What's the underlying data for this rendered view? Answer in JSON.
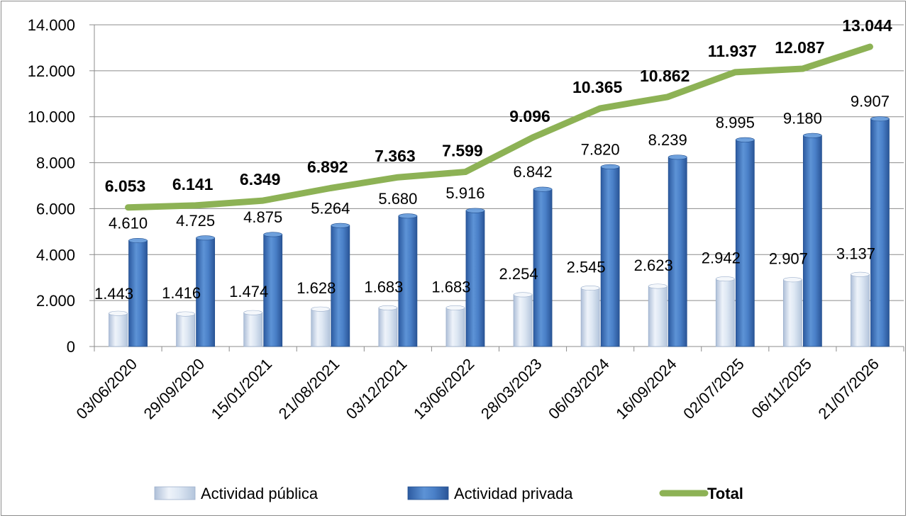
{
  "chart_data": {
    "type": "bar",
    "categories": [
      "03/06/2020",
      "29/09/2020",
      "15/01/2021",
      "21/08/2021",
      "03/12/2021",
      "13/06/2022",
      "28/03/2023",
      "06/03/2024",
      "16/09/2024",
      "02/07/2025",
      "06/11/2025",
      "21/07/2026"
    ],
    "series": [
      {
        "name": "Actividad pública",
        "kind": "bar",
        "values": [
          1443,
          1416,
          1474,
          1628,
          1683,
          1683,
          2254,
          2545,
          2623,
          2942,
          2907,
          3137
        ],
        "labels": [
          "1.443",
          "1.416",
          "1.474",
          "1.628",
          "1.683",
          "1.683",
          "2.254",
          "2.545",
          "2.623",
          "2.942",
          "2.907",
          "3.137"
        ],
        "color": "#d6e3f3"
      },
      {
        "name": "Actividad privada",
        "kind": "bar",
        "values": [
          4610,
          4725,
          4875,
          5264,
          5680,
          5916,
          6842,
          7820,
          8239,
          8995,
          9180,
          9907
        ],
        "labels": [
          "4.610",
          "4.725",
          "4.875",
          "5.264",
          "5.680",
          "5.916",
          "6.842",
          "7.820",
          "8.239",
          "8.995",
          "9.180",
          "9.907"
        ],
        "color": "#3c74c0"
      },
      {
        "name": "Total",
        "kind": "line",
        "values": [
          6053,
          6141,
          6349,
          6892,
          7363,
          7599,
          9096,
          10365,
          10862,
          11937,
          12087,
          13044
        ],
        "labels": [
          "6.053",
          "6.141",
          "6.349",
          "6.892",
          "7.363",
          "7.599",
          "9.096",
          "10.365",
          "10.862",
          "11.937",
          "12.087",
          "13.044"
        ],
        "color": "#8db255"
      }
    ],
    "y_ticks": [
      0,
      2000,
      4000,
      6000,
      8000,
      10000,
      12000,
      14000
    ],
    "y_tick_labels": [
      "0",
      "2.000",
      "4.000",
      "6.000",
      "8.000",
      "10.000",
      "12.000",
      "14.000"
    ],
    "ylim": [
      0,
      14000
    ],
    "gridlines": true,
    "legend_position": "bottom",
    "title": "",
    "xlabel": "",
    "ylabel": ""
  }
}
